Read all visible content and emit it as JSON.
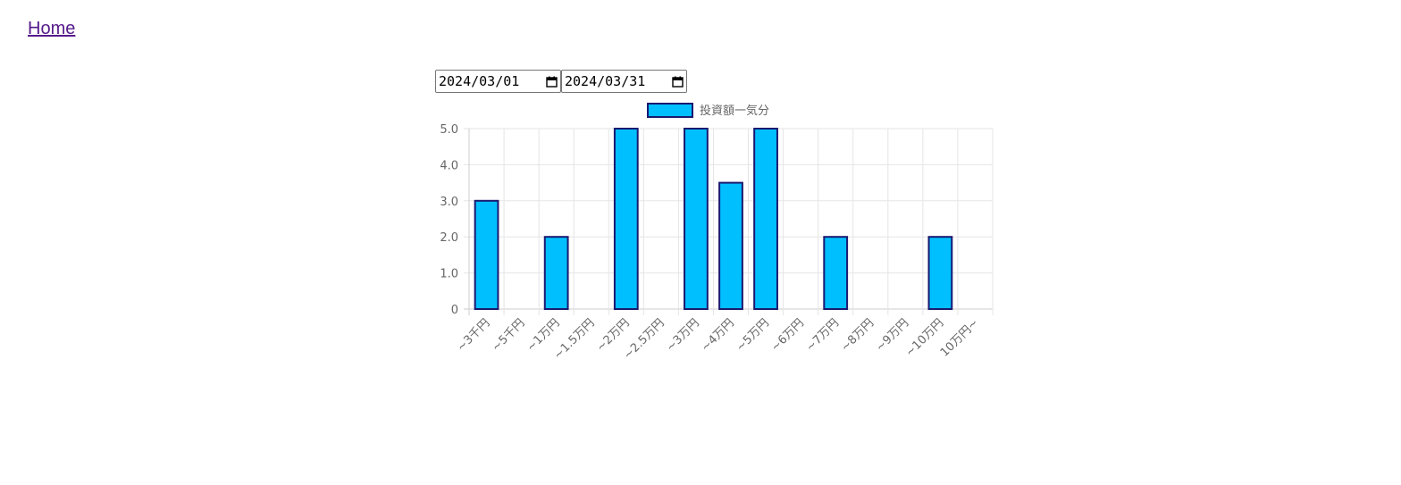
{
  "nav": {
    "home_label": "Home"
  },
  "filters": {
    "start_date": "2024/03/01",
    "end_date": "2024/03/31"
  },
  "colors": {
    "bar_fill": "#00BFFF",
    "bar_border": "#191970",
    "grid": "#e5e5e5",
    "tick": "#666666"
  },
  "chart_data": {
    "type": "bar",
    "legend_position": "top",
    "grid": true,
    "series": [
      {
        "name": "投資額一気分",
        "values": [
          3,
          0,
          2,
          0,
          5,
          0,
          5,
          3.5,
          5,
          0,
          2,
          0,
          0,
          2,
          0
        ]
      }
    ],
    "categories": [
      "~3千円",
      "~5千円",
      "~1万円",
      "~1.5万円",
      "~2万円",
      "~2.5万円",
      "~3万円",
      "~4万円",
      "~5万円",
      "~6万円",
      "~7万円",
      "~8万円",
      "~9万円",
      "~10万円",
      "10万円~"
    ],
    "y_ticks": [
      "0",
      "1.0",
      "2.0",
      "3.0",
      "4.0",
      "5.0"
    ],
    "ylim": [
      0,
      5
    ]
  }
}
